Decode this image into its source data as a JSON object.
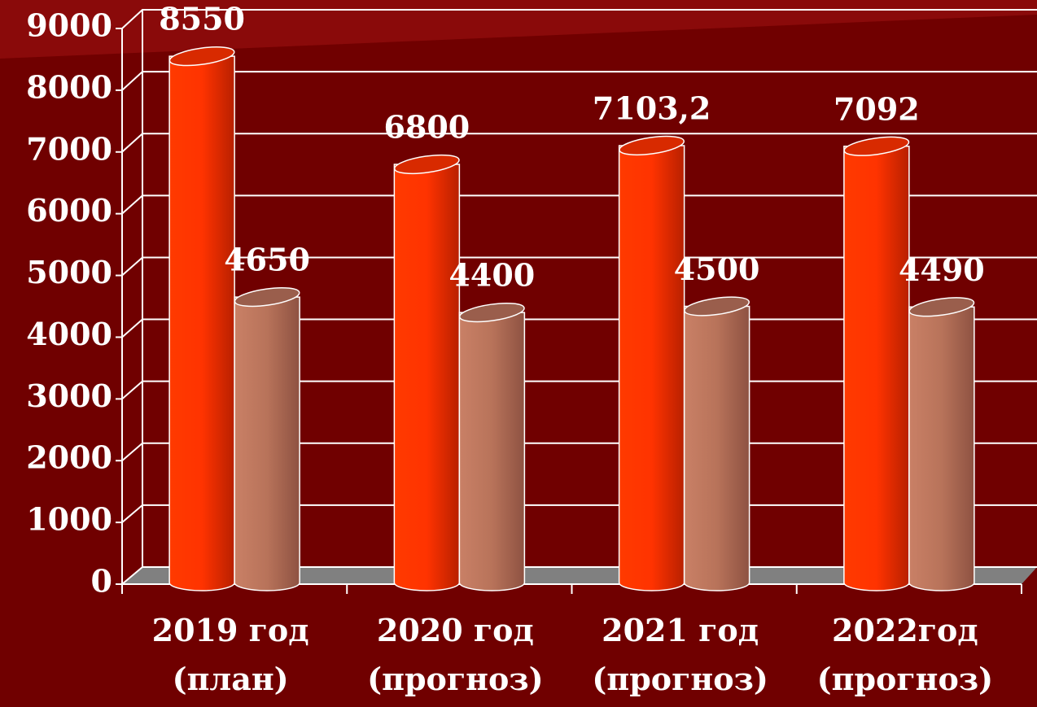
{
  "chart_data": {
    "type": "bar3d",
    "categories": [
      [
        "2019 год",
        "(план)"
      ],
      [
        "2020 год",
        "(прогноз)"
      ],
      [
        "2021 год",
        "(прогноз)"
      ],
      [
        "2022год",
        "(прогноз)"
      ]
    ],
    "series": [
      {
        "color": "#ff3300",
        "values": [
          8550,
          6800,
          7103.2,
          7092
        ],
        "value_labels": [
          "8550",
          "6800",
          "7103,2",
          "7092"
        ]
      },
      {
        "color": "#c47a60",
        "values": [
          4650,
          4400,
          4500,
          4490
        ]
      }
    ],
    "ylim": [
      0,
      9000
    ],
    "yticks": [
      0,
      1000,
      2000,
      3000,
      4000,
      5000,
      6000,
      7000,
      8000,
      9000
    ],
    "grid": true
  }
}
